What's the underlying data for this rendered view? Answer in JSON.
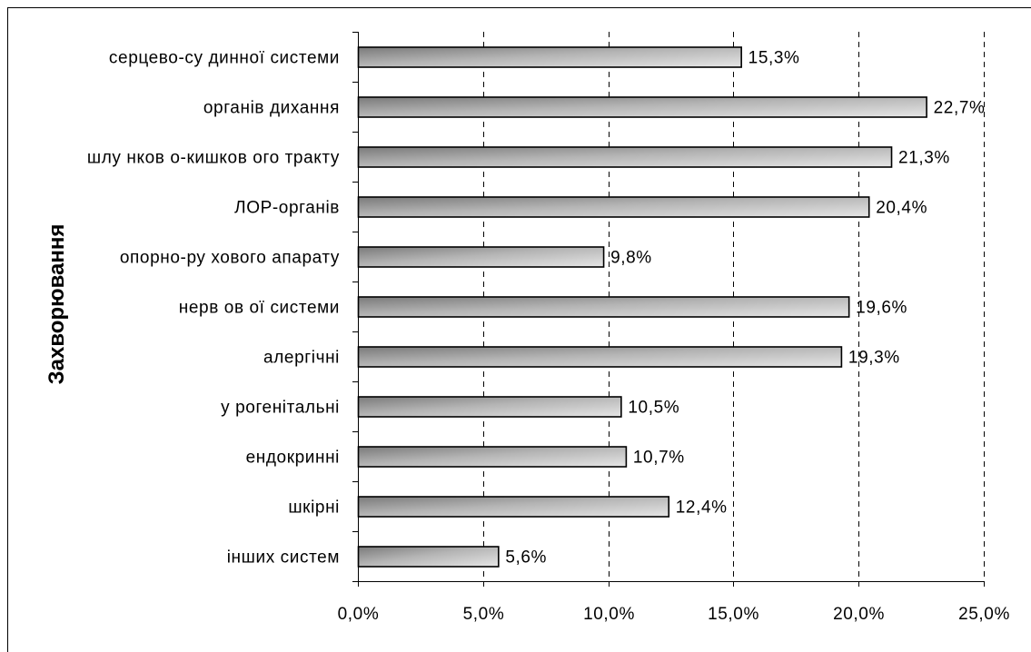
{
  "chart_data": {
    "type": "bar",
    "orientation": "horizontal",
    "ylabel": "Захворювання",
    "categories": [
      "серцево-су динної системи",
      "органів дихання",
      "шлу нков о-кишков ого тракту",
      "ЛОР-органів",
      "опорно-ру хового апарату",
      "нерв ов ої системи",
      "алергічні",
      "у рогенітальні",
      "ендокринні",
      "шкірні",
      "інших систем"
    ],
    "values": [
      15.3,
      22.7,
      21.3,
      20.4,
      9.8,
      19.6,
      19.3,
      10.5,
      10.7,
      12.4,
      5.6
    ],
    "value_labels": [
      "15,3%",
      "22,7%",
      "21,3%",
      "20,4%",
      "9,8%",
      "19,6%",
      "19,3%",
      "10,5%",
      "10,7%",
      "12,4%",
      "5,6%"
    ],
    "xlim": [
      0,
      25
    ],
    "xticks": [
      0,
      5,
      10,
      15,
      20,
      25
    ],
    "xtick_labels": [
      "0,0%",
      "5,0%",
      "10,0%",
      "15,0%",
      "20,0%",
      "25,0%"
    ],
    "grid": "vertical-dashed",
    "bar_color": "#a0a0a0",
    "bar_edge_color": "#000000"
  }
}
